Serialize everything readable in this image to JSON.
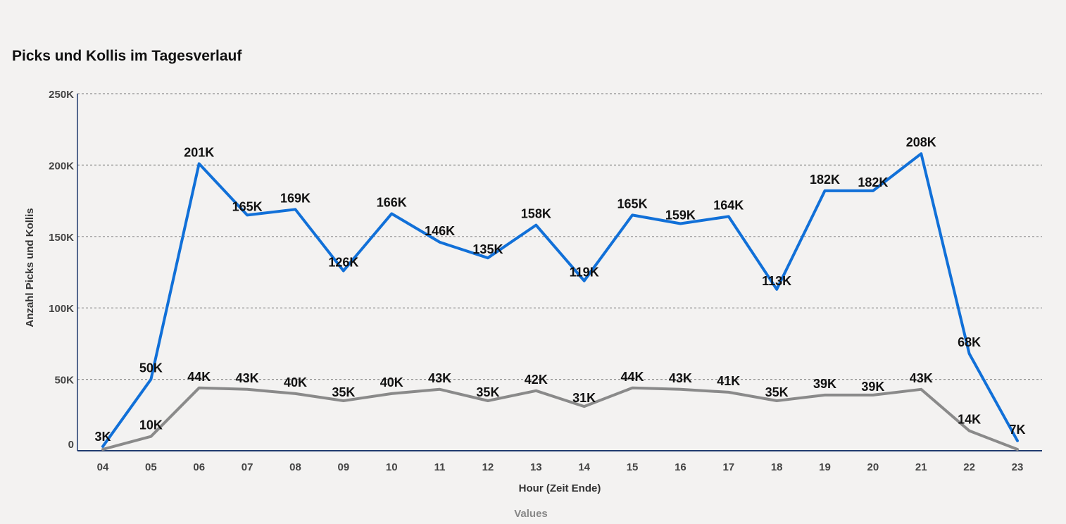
{
  "chart_data": {
    "type": "line",
    "title": "Picks und Kollis im Tagesverlauf",
    "xlabel": "Hour (Zeit Ende)",
    "ylabel": "Anzahl Picks und Kollis",
    "legend_title": "Values",
    "legend_position": "bottom",
    "grid": true,
    "ylim": [
      0,
      250000
    ],
    "y_ticks": [
      0,
      50000,
      100000,
      150000,
      200000,
      250000
    ],
    "y_tick_labels": [
      "0",
      "50K",
      "100K",
      "150K",
      "200K",
      "250K"
    ],
    "categories": [
      "04",
      "05",
      "06",
      "07",
      "08",
      "09",
      "10",
      "11",
      "12",
      "13",
      "14",
      "15",
      "16",
      "17",
      "18",
      "19",
      "20",
      "21",
      "22",
      "23"
    ],
    "series": [
      {
        "color": "#1170d8",
        "values": [
          3000,
          50000,
          201000,
          165000,
          169000,
          126000,
          166000,
          146000,
          135000,
          158000,
          119000,
          165000,
          159000,
          164000,
          113000,
          182000,
          182000,
          208000,
          68000,
          7000
        ],
        "labels": [
          "3K",
          "50K",
          "201K",
          "165K",
          "169K",
          "126K",
          "166K",
          "146K",
          "135K",
          "158K",
          "119K",
          "165K",
          "159K",
          "164K",
          "113K",
          "182K",
          "182K",
          "208K",
          "68K",
          "7K"
        ]
      },
      {
        "color": "#8a8a8a",
        "values": [
          1000,
          10000,
          44000,
          43000,
          40000,
          35000,
          40000,
          43000,
          35000,
          42000,
          31000,
          44000,
          43000,
          41000,
          35000,
          39000,
          39000,
          43000,
          14000,
          1000
        ],
        "labels": [
          "",
          "10K",
          "44K",
          "43K",
          "40K",
          "35K",
          "40K",
          "43K",
          "35K",
          "42K",
          "31K",
          "44K",
          "43K",
          "41K",
          "35K",
          "39K",
          "39K",
          "43K",
          "14K",
          ""
        ]
      }
    ]
  }
}
